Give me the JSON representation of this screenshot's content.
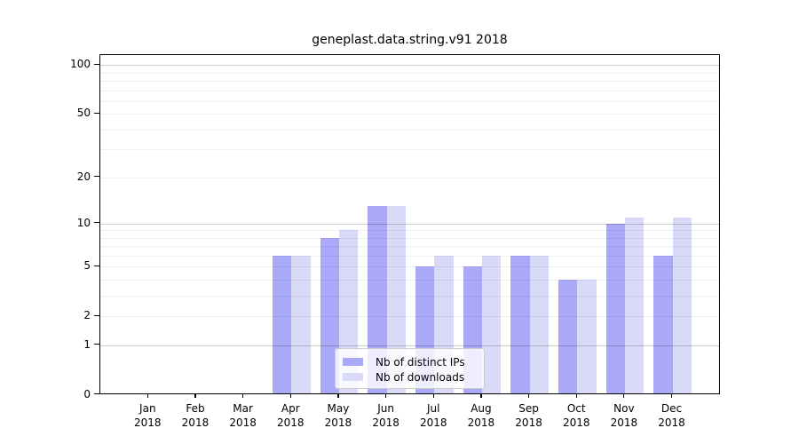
{
  "chart_data": {
    "type": "bar",
    "title": "geneplast.data.string.v91 2018",
    "categories": [
      "Jan",
      "Feb",
      "Mar",
      "Apr",
      "May",
      "Jun",
      "Jul",
      "Aug",
      "Sep",
      "Oct",
      "Nov",
      "Dec"
    ],
    "category_subline": "2018",
    "series": [
      {
        "name": "Nb of distinct IPs",
        "key": "distinct-ips",
        "color": "#a9a9f8",
        "values": [
          0,
          0,
          0,
          6,
          8,
          13,
          5,
          5,
          6,
          4,
          10,
          6
        ]
      },
      {
        "name": "Nb of downloads",
        "key": "downloads",
        "color": "#d9d9f8",
        "values": [
          0,
          0,
          0,
          6,
          9,
          13,
          6,
          6,
          6,
          4,
          11,
          11
        ]
      }
    ],
    "yscale": "log1p",
    "ylim": [
      0,
      100
    ],
    "yticks": [
      0,
      1,
      2,
      5,
      10,
      20,
      50,
      100
    ],
    "gridlines_major": [
      1,
      10,
      100
    ],
    "gridlines_minor": [
      2,
      3,
      4,
      5,
      6,
      7,
      8,
      9,
      20,
      30,
      40,
      50,
      60,
      70,
      80,
      90
    ],
    "grid": true,
    "legend_position": "lower center"
  }
}
